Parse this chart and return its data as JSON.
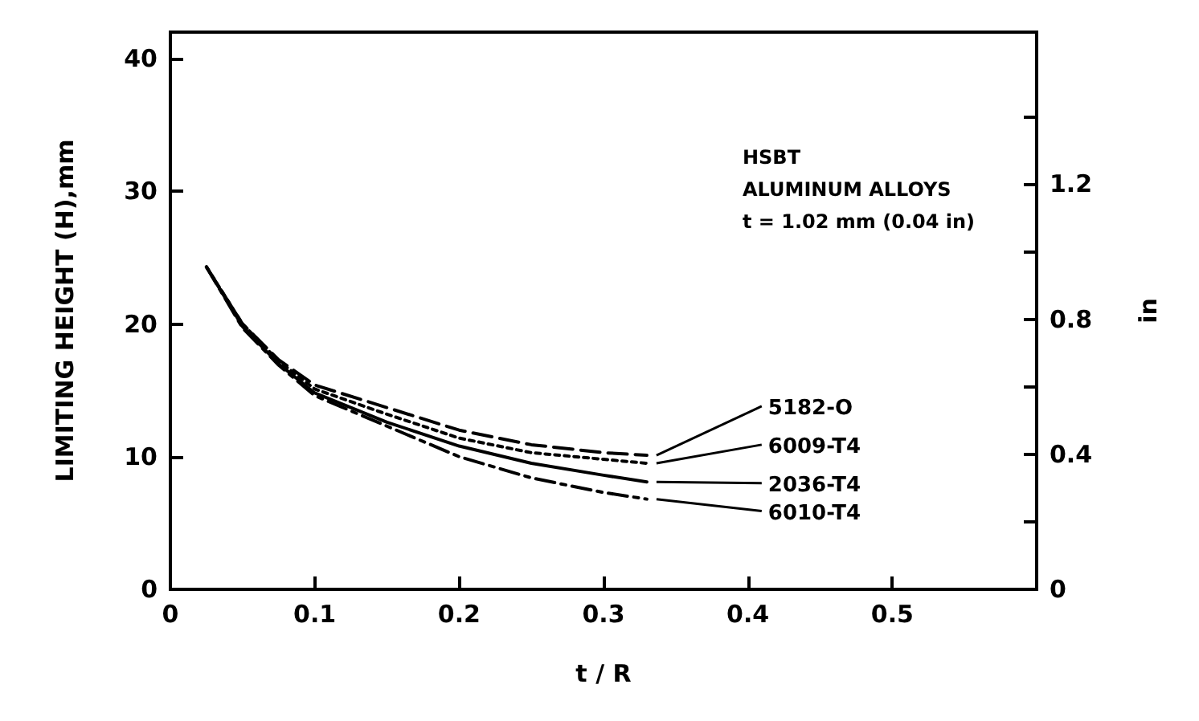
{
  "chart_data": {
    "type": "line",
    "xlabel": "t / R",
    "ylabel": "LIMITING HEIGHT (H),mm",
    "y2label": "in",
    "annotations": [
      "HSBT",
      "ALUMINUM ALLOYS",
      "t = 1.02 mm (0.04 in)"
    ],
    "x": [
      0.025,
      0.05,
      0.075,
      0.1,
      0.15,
      0.2,
      0.25,
      0.3,
      0.33
    ],
    "series": [
      {
        "name": "5182-O",
        "color": "#000000",
        "line_style": "dashed",
        "values": [
          24.3,
          20.0,
          17.3,
          15.4,
          13.7,
          12.0,
          10.9,
          10.3,
          10.1
        ]
      },
      {
        "name": "6009-T4",
        "color": "#000000",
        "line_style": "dotted",
        "values": [
          24.3,
          20.0,
          17.2,
          15.1,
          13.2,
          11.4,
          10.3,
          9.8,
          9.5
        ]
      },
      {
        "name": "2036-T4",
        "color": "#000000",
        "line_style": "solid",
        "values": [
          24.3,
          19.8,
          17.0,
          14.8,
          12.6,
          10.8,
          9.5,
          8.6,
          8.1
        ]
      },
      {
        "name": "6010-T4",
        "color": "#000000",
        "line_style": "dashed",
        "values": [
          24.3,
          19.7,
          16.9,
          14.6,
          12.3,
          10.0,
          8.4,
          7.3,
          6.8
        ]
      }
    ],
    "xlim": [
      0,
      0.6
    ],
    "xticks": [
      0,
      0.1,
      0.2,
      0.3,
      0.4,
      0.5
    ],
    "ylim": [
      0,
      42
    ],
    "yticks": [
      0,
      10,
      20,
      30,
      40
    ],
    "y2lim": [
      0,
      1.65
    ],
    "y2ticks": [
      0,
      {
        "value": 0.2,
        "label": null
      },
      0.4,
      {
        "value": 0.6,
        "label": null
      },
      0.8,
      {
        "value": 1.0,
        "label": null
      },
      1.2,
      {
        "value": 1.4,
        "label": null
      }
    ],
    "grid": false,
    "legend": false,
    "marker": "none"
  }
}
